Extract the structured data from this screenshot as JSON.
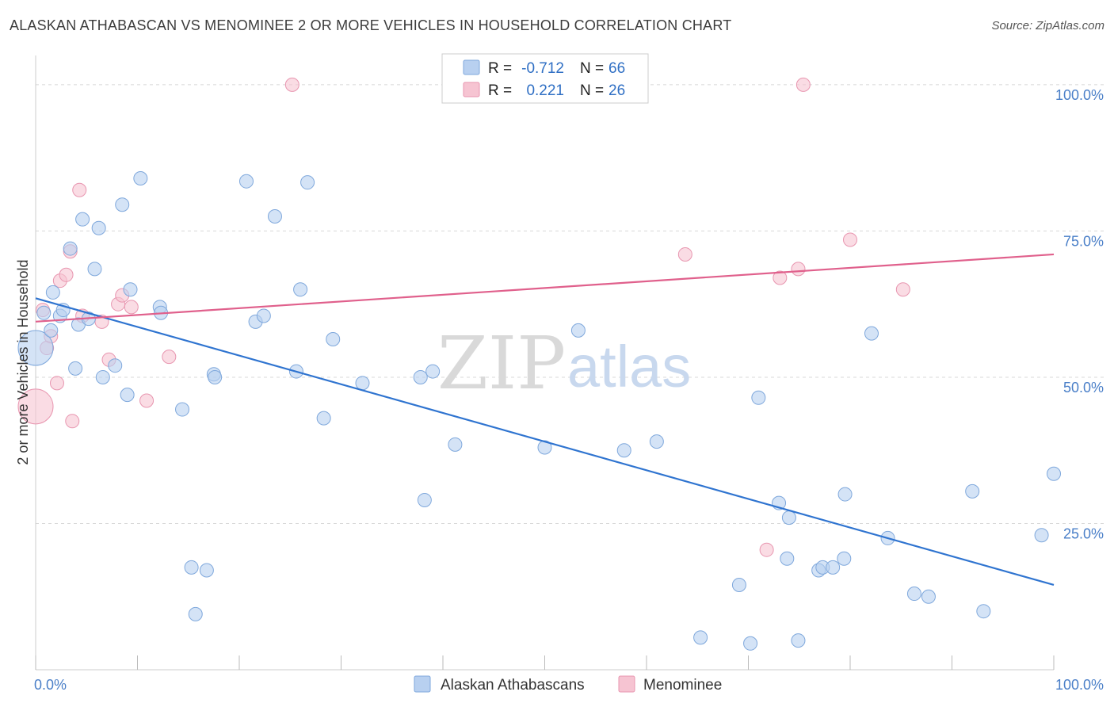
{
  "title": "ALASKAN ATHABASCAN VS MENOMINEE 2 OR MORE VEHICLES IN HOUSEHOLD CORRELATION CHART",
  "source": "Source: ZipAtlas.com",
  "watermark": {
    "zip": "ZIP",
    "atlas": "atlas"
  },
  "legend": {
    "rows": [
      {
        "r_label": "R =",
        "r_value": "-0.712",
        "n_label": "N =",
        "n_value": "66"
      },
      {
        "r_label": "R =",
        "r_value": "0.221",
        "n_label": "N =",
        "n_value": "26"
      }
    ]
  },
  "colors": {
    "blue_fill": "#b8d0f0",
    "blue_stroke": "#7fa8dc",
    "blue_line": "#2f74d0",
    "pink_fill": "#f6c4d2",
    "pink_stroke": "#e896b0",
    "pink_line": "#e0608c",
    "grid": "#d8d8d8",
    "tick_text": "#4a7fc8"
  },
  "chart_data": {
    "type": "scatter",
    "title": "ALASKAN ATHABASCAN VS MENOMINEE 2 OR MORE VEHICLES IN HOUSEHOLD CORRELATION CHART",
    "xlabel": "",
    "ylabel": "2 or more Vehicles in Household",
    "xlim": [
      0,
      100
    ],
    "ylim": [
      0,
      105
    ],
    "x_tick_labels": [
      "0.0%",
      "100.0%"
    ],
    "y_ticks": [
      25,
      50,
      75,
      100
    ],
    "y_tick_labels": [
      "25.0%",
      "50.0%",
      "75.0%",
      "100.0%"
    ],
    "grid": true,
    "legend_position": "top-center",
    "series": [
      {
        "name": "Alaskan Athabascans",
        "color": "#b8d0f0",
        "trend": {
          "x": [
            0,
            100
          ],
          "y": [
            63.5,
            14.5
          ]
        },
        "points": [
          {
            "x": 0.0,
            "y": 55.0,
            "big": true
          },
          {
            "x": 0.8,
            "y": 61.0
          },
          {
            "x": 1.5,
            "y": 58.0
          },
          {
            "x": 1.7,
            "y": 64.5
          },
          {
            "x": 2.4,
            "y": 60.5
          },
          {
            "x": 2.7,
            "y": 61.5
          },
          {
            "x": 4.2,
            "y": 59.0
          },
          {
            "x": 3.9,
            "y": 51.5
          },
          {
            "x": 4.6,
            "y": 77.0
          },
          {
            "x": 5.2,
            "y": 60.0
          },
          {
            "x": 3.4,
            "y": 72.0
          },
          {
            "x": 5.8,
            "y": 68.5
          },
          {
            "x": 6.2,
            "y": 75.5
          },
          {
            "x": 6.6,
            "y": 50.0
          },
          {
            "x": 7.8,
            "y": 52.0
          },
          {
            "x": 8.5,
            "y": 79.5
          },
          {
            "x": 9.0,
            "y": 47.0
          },
          {
            "x": 9.3,
            "y": 65.0
          },
          {
            "x": 10.3,
            "y": 84.0
          },
          {
            "x": 12.2,
            "y": 62.0
          },
          {
            "x": 12.3,
            "y": 61.0
          },
          {
            "x": 14.4,
            "y": 44.5
          },
          {
            "x": 15.3,
            "y": 17.5
          },
          {
            "x": 15.7,
            "y": 9.5
          },
          {
            "x": 16.8,
            "y": 17.0
          },
          {
            "x": 17.5,
            "y": 50.5
          },
          {
            "x": 17.6,
            "y": 50.0
          },
          {
            "x": 20.7,
            "y": 83.5
          },
          {
            "x": 21.6,
            "y": 59.5
          },
          {
            "x": 22.4,
            "y": 60.5
          },
          {
            "x": 23.5,
            "y": 77.5
          },
          {
            "x": 25.6,
            "y": 51.0
          },
          {
            "x": 26.0,
            "y": 65.0
          },
          {
            "x": 26.7,
            "y": 83.3
          },
          {
            "x": 28.3,
            "y": 43.0
          },
          {
            "x": 29.2,
            "y": 56.5
          },
          {
            "x": 32.1,
            "y": 49.0
          },
          {
            "x": 37.8,
            "y": 50.0
          },
          {
            "x": 38.2,
            "y": 29.0
          },
          {
            "x": 39.0,
            "y": 51.0
          },
          {
            "x": 41.2,
            "y": 38.5
          },
          {
            "x": 50.0,
            "y": 38.0
          },
          {
            "x": 53.3,
            "y": 58.0
          },
          {
            "x": 57.8,
            "y": 37.5
          },
          {
            "x": 61.0,
            "y": 39.0
          },
          {
            "x": 65.3,
            "y": 5.5
          },
          {
            "x": 69.1,
            "y": 14.5
          },
          {
            "x": 70.2,
            "y": 4.5
          },
          {
            "x": 71.0,
            "y": 46.5
          },
          {
            "x": 73.0,
            "y": 28.5
          },
          {
            "x": 73.8,
            "y": 19.0
          },
          {
            "x": 74.0,
            "y": 26.0
          },
          {
            "x": 74.9,
            "y": 5.0
          },
          {
            "x": 76.9,
            "y": 17.0
          },
          {
            "x": 77.3,
            "y": 17.5
          },
          {
            "x": 78.3,
            "y": 17.5
          },
          {
            "x": 79.4,
            "y": 19.0
          },
          {
            "x": 79.5,
            "y": 30.0
          },
          {
            "x": 82.1,
            "y": 57.5
          },
          {
            "x": 83.7,
            "y": 22.5
          },
          {
            "x": 86.3,
            "y": 13.0
          },
          {
            "x": 87.7,
            "y": 12.5
          },
          {
            "x": 92.0,
            "y": 30.5
          },
          {
            "x": 93.1,
            "y": 10.0
          },
          {
            "x": 98.8,
            "y": 23.0
          },
          {
            "x": 100.0,
            "y": 33.5
          }
        ]
      },
      {
        "name": "Menominee",
        "color": "#f6c4d2",
        "trend": {
          "x": [
            0,
            100
          ],
          "y": [
            59.5,
            71.0
          ]
        },
        "points": [
          {
            "x": 0.0,
            "y": 45.0,
            "big": true
          },
          {
            "x": 0.7,
            "y": 61.5
          },
          {
            "x": 1.1,
            "y": 55.0
          },
          {
            "x": 1.5,
            "y": 57.0
          },
          {
            "x": 2.1,
            "y": 49.0
          },
          {
            "x": 2.4,
            "y": 66.5
          },
          {
            "x": 3.0,
            "y": 67.5
          },
          {
            "x": 3.4,
            "y": 71.5
          },
          {
            "x": 3.6,
            "y": 42.5
          },
          {
            "x": 4.3,
            "y": 82.0
          },
          {
            "x": 4.6,
            "y": 60.5
          },
          {
            "x": 6.5,
            "y": 59.5
          },
          {
            "x": 7.2,
            "y": 53.0
          },
          {
            "x": 8.1,
            "y": 62.5
          },
          {
            "x": 8.5,
            "y": 64.0
          },
          {
            "x": 9.4,
            "y": 62.0
          },
          {
            "x": 10.9,
            "y": 46.0
          },
          {
            "x": 13.1,
            "y": 53.5
          },
          {
            "x": 25.2,
            "y": 100.0
          },
          {
            "x": 63.8,
            "y": 71.0
          },
          {
            "x": 71.8,
            "y": 20.5
          },
          {
            "x": 73.1,
            "y": 67.0
          },
          {
            "x": 75.4,
            "y": 100.0
          },
          {
            "x": 74.9,
            "y": 68.5
          },
          {
            "x": 80.0,
            "y": 73.5
          },
          {
            "x": 85.2,
            "y": 65.0
          }
        ]
      }
    ]
  }
}
